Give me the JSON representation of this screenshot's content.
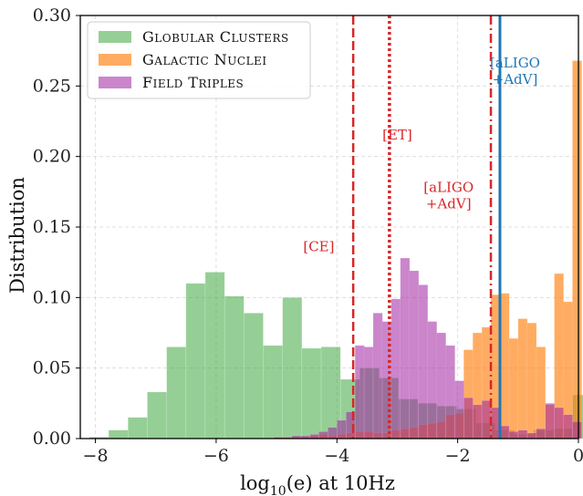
{
  "chart_data": {
    "type": "bar",
    "xlabel": "log10(e) at 10Hz",
    "ylabel": "Distribution",
    "xlim": [
      -8.25,
      0
    ],
    "ylim": [
      0,
      0.3
    ],
    "xticks": [
      -8,
      -6,
      -4,
      -2,
      0
    ],
    "xtick_labels": [
      "−8",
      "−6",
      "−4",
      "−2",
      "0"
    ],
    "yticks": [
      0,
      0.05,
      0.1,
      0.15,
      0.2,
      0.25,
      0.3
    ],
    "ytick_labels": [
      "0.00",
      "0.05",
      "0.10",
      "0.15",
      "0.20",
      "0.25",
      "0.30"
    ],
    "grid": true,
    "legend_position": "top-left",
    "series": [
      {
        "name": "Globular Clusters",
        "color": "#2ca02c",
        "bin_width": 0.32,
        "bins_start": [
          -8.1,
          -7.78,
          -7.46,
          -7.14,
          -6.82,
          -6.5,
          -6.18,
          -5.86,
          -5.54,
          -5.22,
          -4.9,
          -4.58,
          -4.26,
          -3.94,
          -3.62,
          -3.3,
          -2.98,
          -2.66,
          -2.34,
          -2.02,
          -1.7,
          -1.38,
          -1.06,
          -0.74,
          -0.42,
          -0.1
        ],
        "values": [
          0.001,
          0.006,
          0.015,
          0.033,
          0.065,
          0.11,
          0.118,
          0.101,
          0.089,
          0.066,
          0.1,
          0.064,
          0.065,
          0.042,
          0.05,
          0.043,
          0.028,
          0.025,
          0.023,
          0.021,
          0.011,
          0.006,
          0.003,
          0.006,
          0.007,
          0.031
        ]
      },
      {
        "name": "Galactic Nuclei",
        "color": "#ff7f0e",
        "bin_width": 0.155,
        "bins_start": [
          -5.05,
          -4.9,
          -4.75,
          -4.6,
          -4.45,
          -4.3,
          -4.15,
          -4.0,
          -3.85,
          -3.7,
          -3.55,
          -3.4,
          -3.25,
          -3.1,
          -2.95,
          -2.8,
          -2.65,
          -2.5,
          -2.35,
          -2.2,
          -2.05,
          -1.9,
          -1.75,
          -1.6,
          -1.45,
          -1.3,
          -1.15,
          -1.0,
          -0.85,
          -0.7,
          -0.55,
          -0.4,
          -0.25,
          -0.1
        ],
        "values": [
          0.001,
          0.001,
          0.001,
          0.001,
          0.002,
          0.003,
          0.002,
          0.003,
          0.004,
          0.005,
          0.005,
          0.004,
          0.004,
          0.006,
          0.007,
          0.008,
          0.01,
          0.011,
          0.012,
          0.017,
          0.018,
          0.063,
          0.075,
          0.079,
          0.102,
          0.103,
          0.071,
          0.085,
          0.082,
          0.065,
          0.024,
          0.117,
          0.097,
          0.268
        ]
      },
      {
        "name": "Field Triples",
        "color": "#a020a0",
        "bin_width": 0.155,
        "bins_start": [
          -5.05,
          -4.9,
          -4.75,
          -4.6,
          -4.45,
          -4.3,
          -4.15,
          -4.0,
          -3.85,
          -3.7,
          -3.55,
          -3.4,
          -3.25,
          -3.1,
          -2.95,
          -2.8,
          -2.65,
          -2.5,
          -2.35,
          -2.2,
          -2.05,
          -1.9,
          -1.75,
          -1.6,
          -1.45,
          -1.3,
          -1.15,
          -1.0,
          -0.85,
          -0.7,
          -0.55,
          -0.4,
          -0.25,
          -0.1
        ],
        "values": [
          0.001,
          0.001,
          0.002,
          0.002,
          0.003,
          0.005,
          0.008,
          0.013,
          0.019,
          0.066,
          0.065,
          0.089,
          0.083,
          0.099,
          0.128,
          0.119,
          0.109,
          0.083,
          0.075,
          0.066,
          0.041,
          0.029,
          0.024,
          0.027,
          0.022,
          0.009,
          0.005,
          0.006,
          0.004,
          0.007,
          0.025,
          0.022,
          0.017,
          0.012
        ]
      }
    ],
    "vlines": [
      {
        "x": -3.73,
        "label": "[CE]",
        "style": "dashed",
        "color": "#d62728",
        "label_x": -4.3,
        "label_y": 0.133
      },
      {
        "x": -3.13,
        "label": "[ET]",
        "style": "dotted",
        "color": "#d62728",
        "label_x": -3.0,
        "label_y": 0.212
      },
      {
        "x": -1.45,
        "label": "[aLIGO\n+AdV]",
        "style": "dashdot",
        "color": "#d62728",
        "label_x": -2.15,
        "label_y": 0.175
      },
      {
        "x": -1.3,
        "label": "[aLIGO\n+AdV]",
        "style": "solid",
        "color": "#1f77b4",
        "label_x": -1.05,
        "label_y": 0.263
      }
    ]
  }
}
